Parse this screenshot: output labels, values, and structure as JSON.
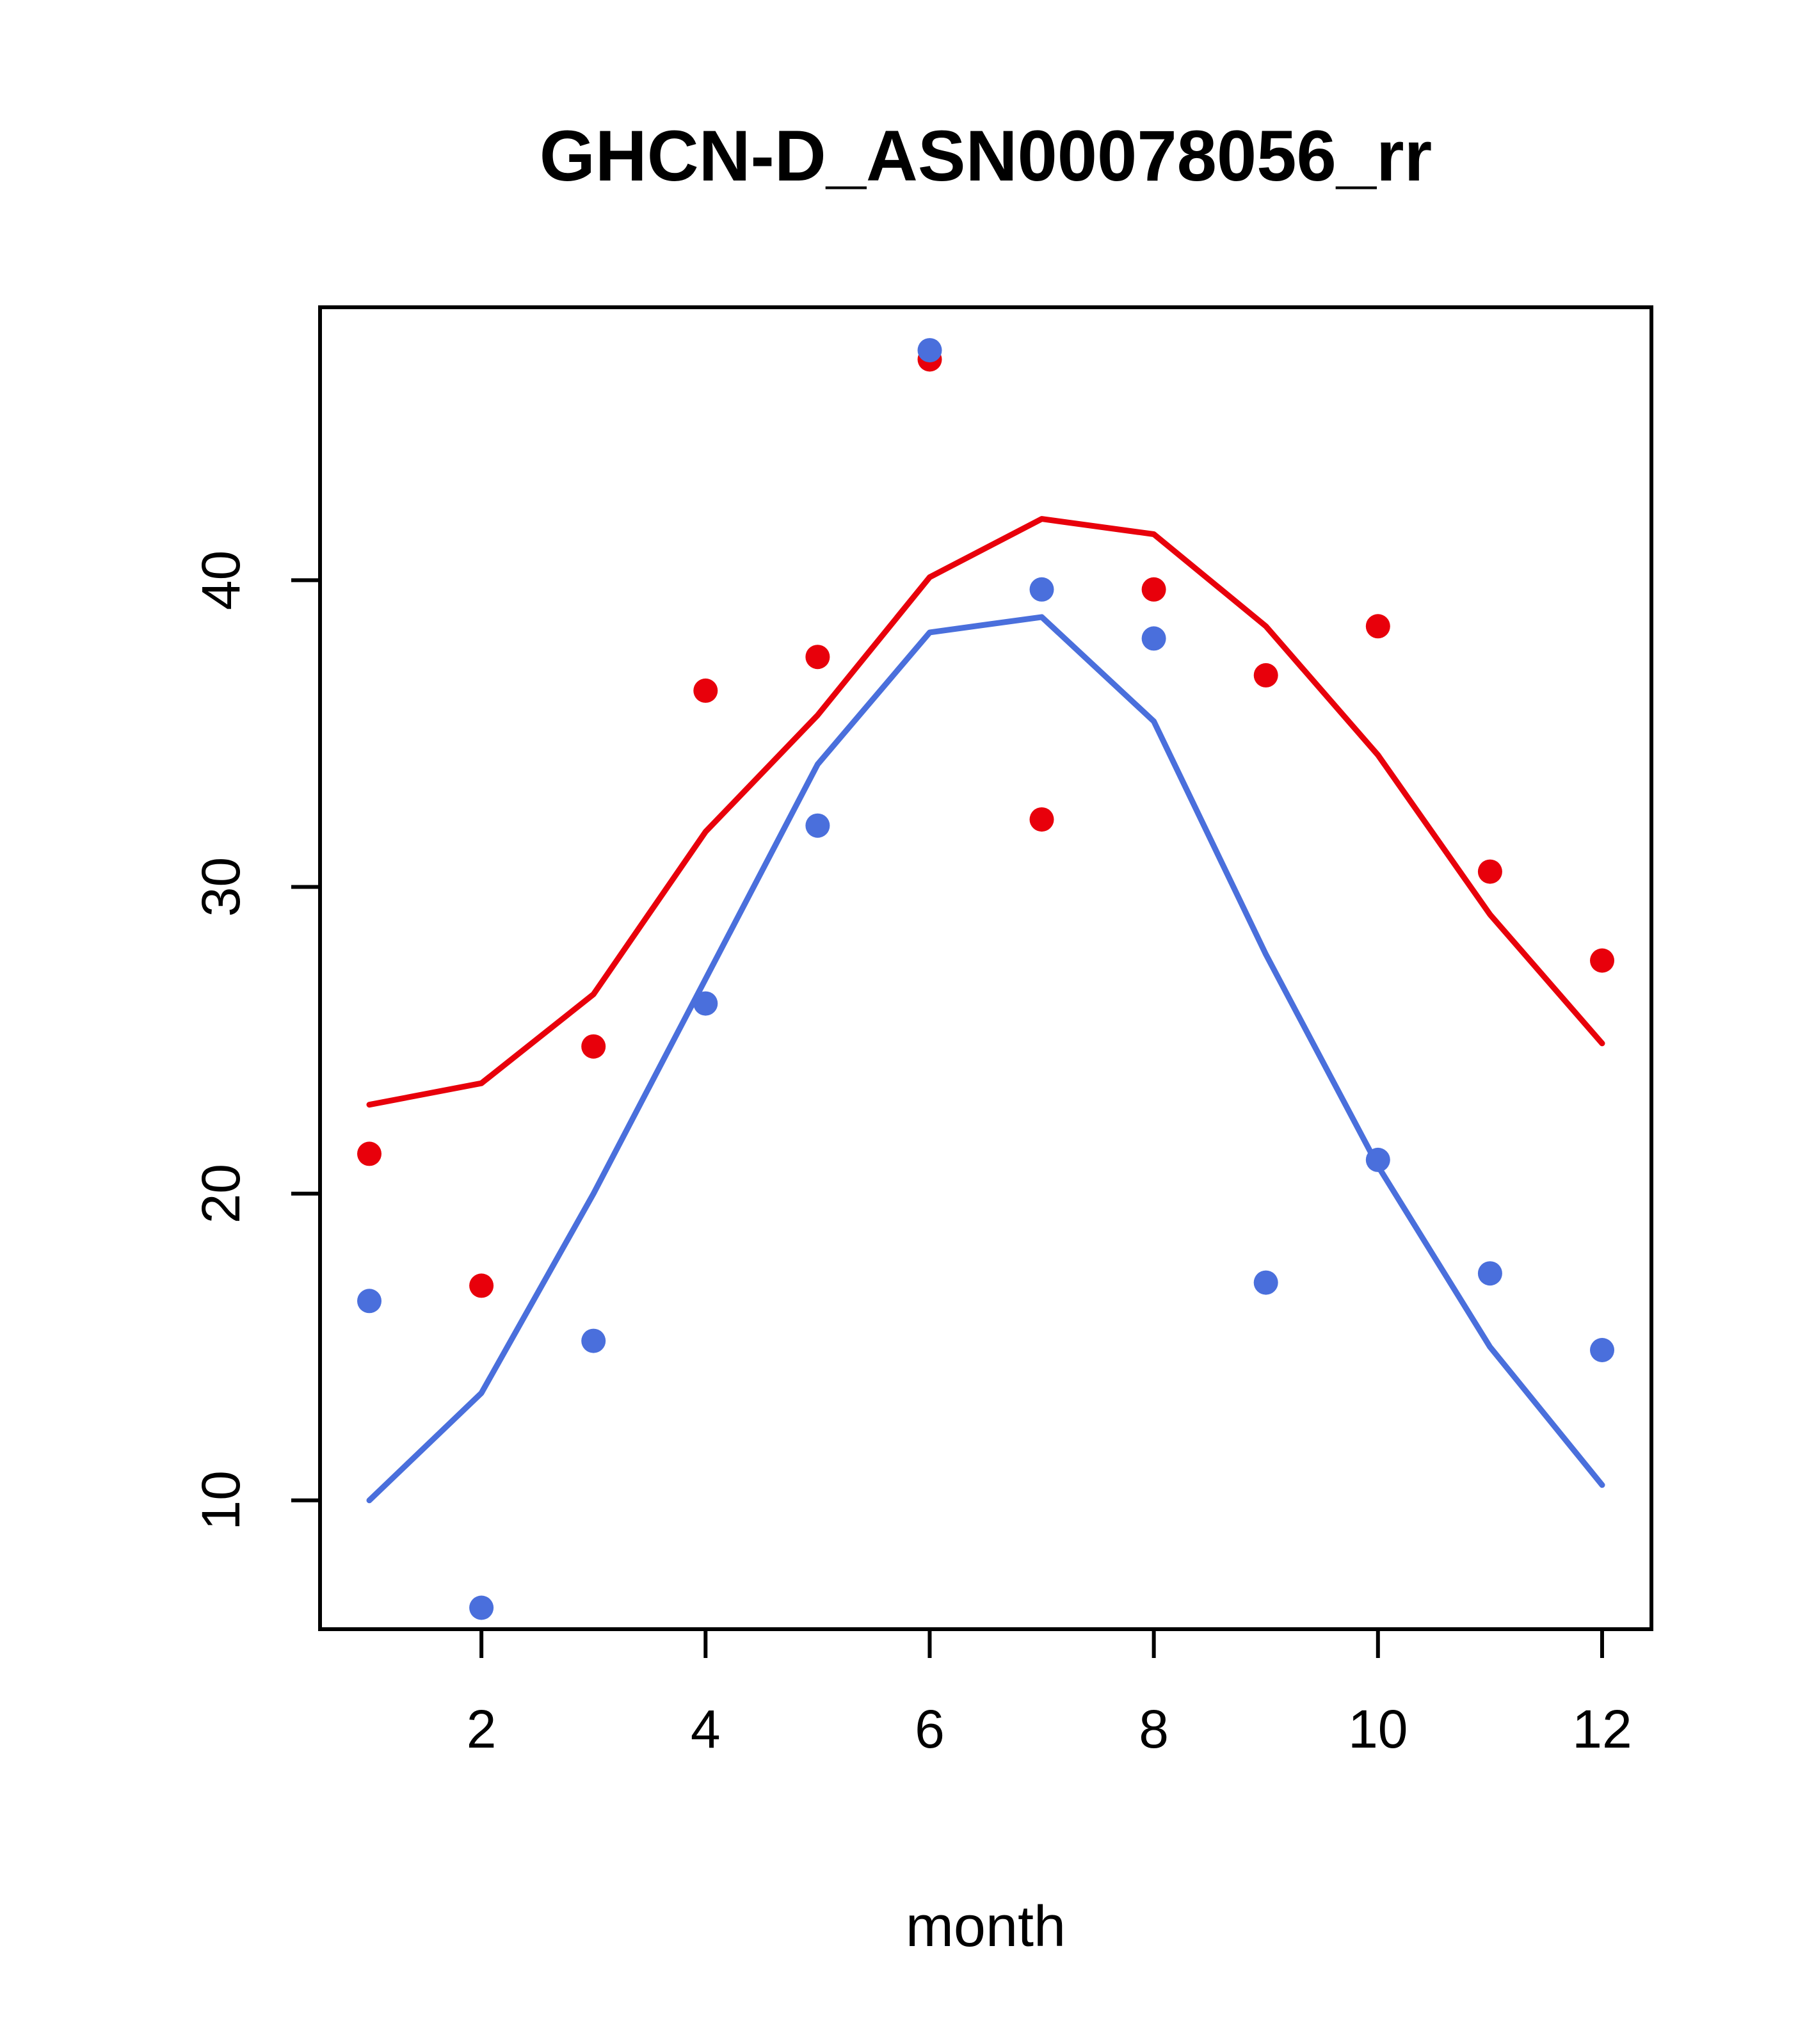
{
  "chart_data": {
    "type": "line",
    "title": "GHCN-D_ASN00078056_rr",
    "xlabel": "month",
    "ylabel": "",
    "x": [
      1,
      2,
      3,
      4,
      5,
      6,
      7,
      8,
      9,
      10,
      11,
      12
    ],
    "xticks": [
      2,
      4,
      6,
      8,
      10,
      12
    ],
    "yticks": [
      10,
      20,
      30,
      40
    ],
    "xlim": [
      0.56,
      12.44
    ],
    "ylim": [
      5.8,
      48.9
    ],
    "grid": false,
    "legend": "none",
    "colors": {
      "red": "#e8000b",
      "blue": "#4a6fdc"
    },
    "series": [
      {
        "name": "red-line",
        "kind": "line",
        "color_key": "red",
        "values": [
          22.9,
          23.6,
          26.5,
          31.8,
          35.6,
          40.1,
          42.0,
          41.5,
          38.5,
          34.3,
          29.1,
          24.9
        ]
      },
      {
        "name": "blue-line",
        "kind": "line",
        "color_key": "blue",
        "values": [
          10.0,
          13.5,
          20.0,
          27.0,
          34.0,
          38.3,
          38.8,
          35.4,
          27.8,
          20.9,
          15.0,
          10.5
        ]
      },
      {
        "name": "red-points",
        "kind": "scatter",
        "color_key": "red",
        "values": [
          21.3,
          17.0,
          24.8,
          36.4,
          37.5,
          47.2,
          32.2,
          39.7,
          36.9,
          38.5,
          30.5,
          27.6
        ]
      },
      {
        "name": "blue-points",
        "kind": "scatter",
        "color_key": "blue",
        "values": [
          16.5,
          6.5,
          15.2,
          26.2,
          32.0,
          47.5,
          39.7,
          38.1,
          17.1,
          21.1,
          17.4,
          14.9
        ]
      }
    ]
  }
}
